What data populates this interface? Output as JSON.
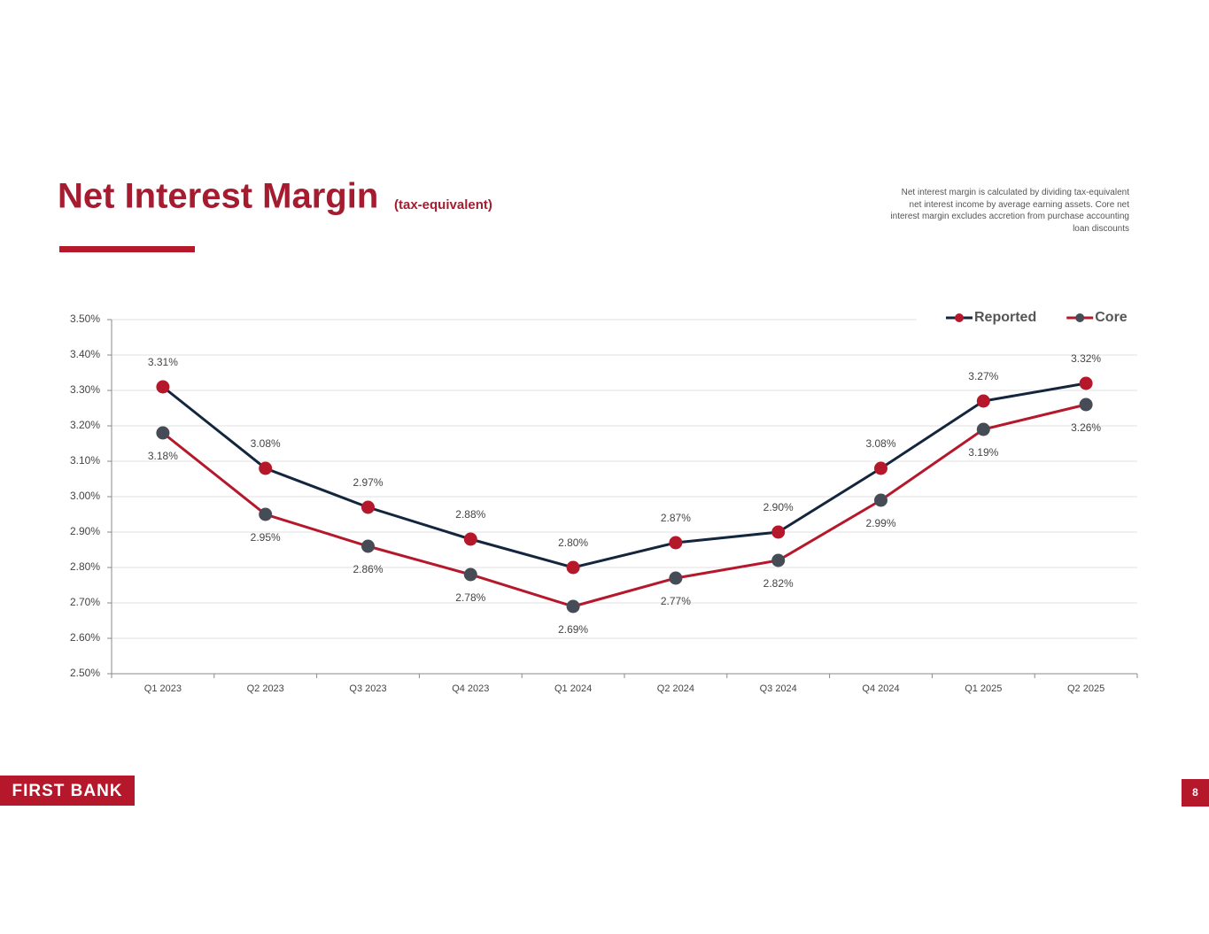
{
  "chart_data": {
    "type": "line",
    "title": "Net Interest Margin",
    "subtitle": "(tax-equivalent)",
    "categories": [
      "Q1 2023",
      "Q2 2023",
      "Q3 2023",
      "Q4 2023",
      "Q1 2024",
      "Q2 2024",
      "Q3 2024",
      "Q4 2024",
      "Q1 2025",
      "Q2 2025"
    ],
    "series": [
      {
        "name": "Reported",
        "color": "#13263d",
        "marker_color": "#b5182b",
        "label_position": "above",
        "values": [
          3.31,
          3.08,
          2.97,
          2.88,
          2.8,
          2.87,
          2.9,
          3.08,
          3.27,
          3.32
        ],
        "value_labels": [
          "3.31%",
          "3.08%",
          "2.97%",
          "2.88%",
          "2.80%",
          "2.87%",
          "2.90%",
          "3.08%",
          "3.27%",
          "3.32%"
        ]
      },
      {
        "name": "Core",
        "color": "#b5182b",
        "marker_color": "#454c55",
        "label_position": "below",
        "values": [
          3.18,
          2.95,
          2.86,
          2.78,
          2.69,
          2.77,
          2.82,
          2.99,
          3.19,
          3.26
        ],
        "value_labels": [
          "3.18%",
          "2.95%",
          "2.86%",
          "2.78%",
          "2.69%",
          "2.77%",
          "2.82%",
          "2.99%",
          "3.19%",
          "3.26%"
        ]
      }
    ],
    "ylim": [
      2.5,
      3.5
    ],
    "yticks": [
      {
        "value": 2.5,
        "label": "2.50%"
      },
      {
        "value": 2.6,
        "label": "2.60%"
      },
      {
        "value": 2.7,
        "label": "2.70%"
      },
      {
        "value": 2.8,
        "label": "2.80%"
      },
      {
        "value": 2.9,
        "label": "2.90%"
      },
      {
        "value": 3.0,
        "label": "3.00%"
      },
      {
        "value": 3.1,
        "label": "3.10%"
      },
      {
        "value": 3.2,
        "label": "3.20%"
      },
      {
        "value": 3.3,
        "label": "3.30%"
      },
      {
        "value": 3.4,
        "label": "3.40%"
      },
      {
        "value": 3.5,
        "label": "3.50%"
      }
    ],
    "grid": true,
    "legend": "top-right"
  },
  "slide": {
    "note": "Net interest margin is calculated by dividing tax-equivalent net interest income by average earning assets. Core net interest margin excludes accretion from purchase accounting loan discounts",
    "logo": "FIRST BANK",
    "page_number": "8"
  }
}
